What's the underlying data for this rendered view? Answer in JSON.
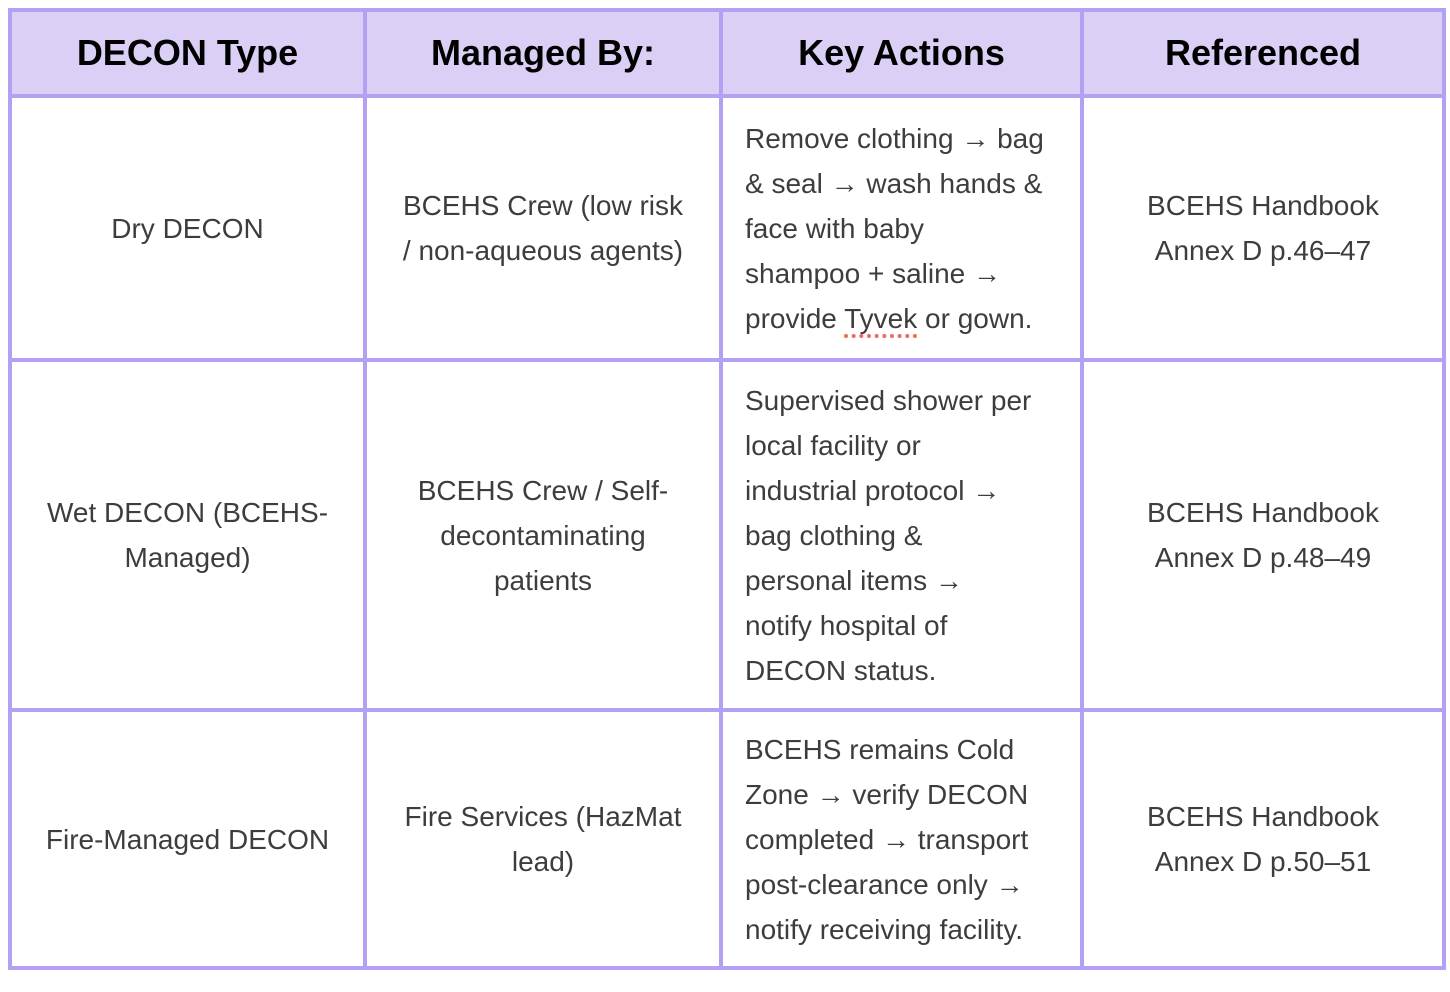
{
  "colors": {
    "table_border": "#B3A0F2",
    "header_background": "#DBCFF6",
    "header_text": "#000000",
    "body_text": "#3d3d3d",
    "spellcheck_underline": "#EF6A5A",
    "page_background": "#ffffff"
  },
  "table": {
    "columns": [
      "DECON Type",
      "Managed By:",
      "Key Actions",
      "Referenced"
    ],
    "rows": [
      {
        "decon_type": "Dry DECON",
        "managed_by": "BCEHS Crew (low risk\n/ non-aqueous agents)",
        "key_actions": [
          {
            "text": "Remove clothing → bag\n& seal → wash hands &\nface with baby\nshampoo + saline →\nprovide "
          },
          {
            "text": "Tyvek",
            "misspelled": true
          },
          {
            "text": " or gown."
          }
        ],
        "referenced": "BCEHS Handbook\nAnnex D p.46–47"
      },
      {
        "decon_type": "Wet DECON (BCEHS-\nManaged)",
        "managed_by": "BCEHS Crew / Self-\ndecontaminating\npatients",
        "key_actions": [
          {
            "text": "Supervised shower per\nlocal facility or\nindustrial protocol →\nbag clothing &\npersonal items →\nnotify hospital of\nDECON status."
          }
        ],
        "referenced": "BCEHS Handbook\nAnnex D p.48–49"
      },
      {
        "decon_type": "Fire-Managed DECON",
        "managed_by": "Fire Services (HazMat\nlead)",
        "key_actions": [
          {
            "text": "BCEHS remains Cold\nZone → verify DECON\ncompleted → transport\npost-clearance only →\nnotify receiving facility."
          }
        ],
        "referenced": "BCEHS Handbook\nAnnex D p.50–51"
      }
    ]
  }
}
